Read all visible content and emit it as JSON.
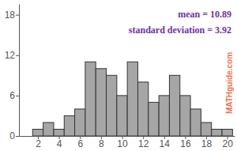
{
  "chart_data": {
    "type": "histogram",
    "bins": [
      1.5,
      2.5,
      3.5,
      4.5,
      5.5,
      6.5,
      7.5,
      8.5,
      9.5,
      10.5,
      11.5,
      12.5,
      13.5,
      14.5,
      15.5,
      16.5,
      17.5,
      18.5,
      19.5,
      20.5
    ],
    "values": [
      1,
      2,
      1,
      3,
      4,
      11,
      10,
      9,
      6,
      11,
      8,
      5,
      6,
      9,
      6,
      4,
      2,
      1,
      1
    ],
    "color": "#a6a6a6",
    "xlim": [
      0.2,
      20.7
    ],
    "xticks": [
      2,
      4,
      6,
      8,
      10,
      12,
      14,
      16,
      18,
      20
    ],
    "ylim": [
      0,
      19.6
    ],
    "yticks": [
      0,
      6,
      12,
      18
    ],
    "grid": false,
    "annotations": [
      "mean = 10.89",
      "standard deviation = 3.92",
      "MATHguide.com"
    ]
  }
}
